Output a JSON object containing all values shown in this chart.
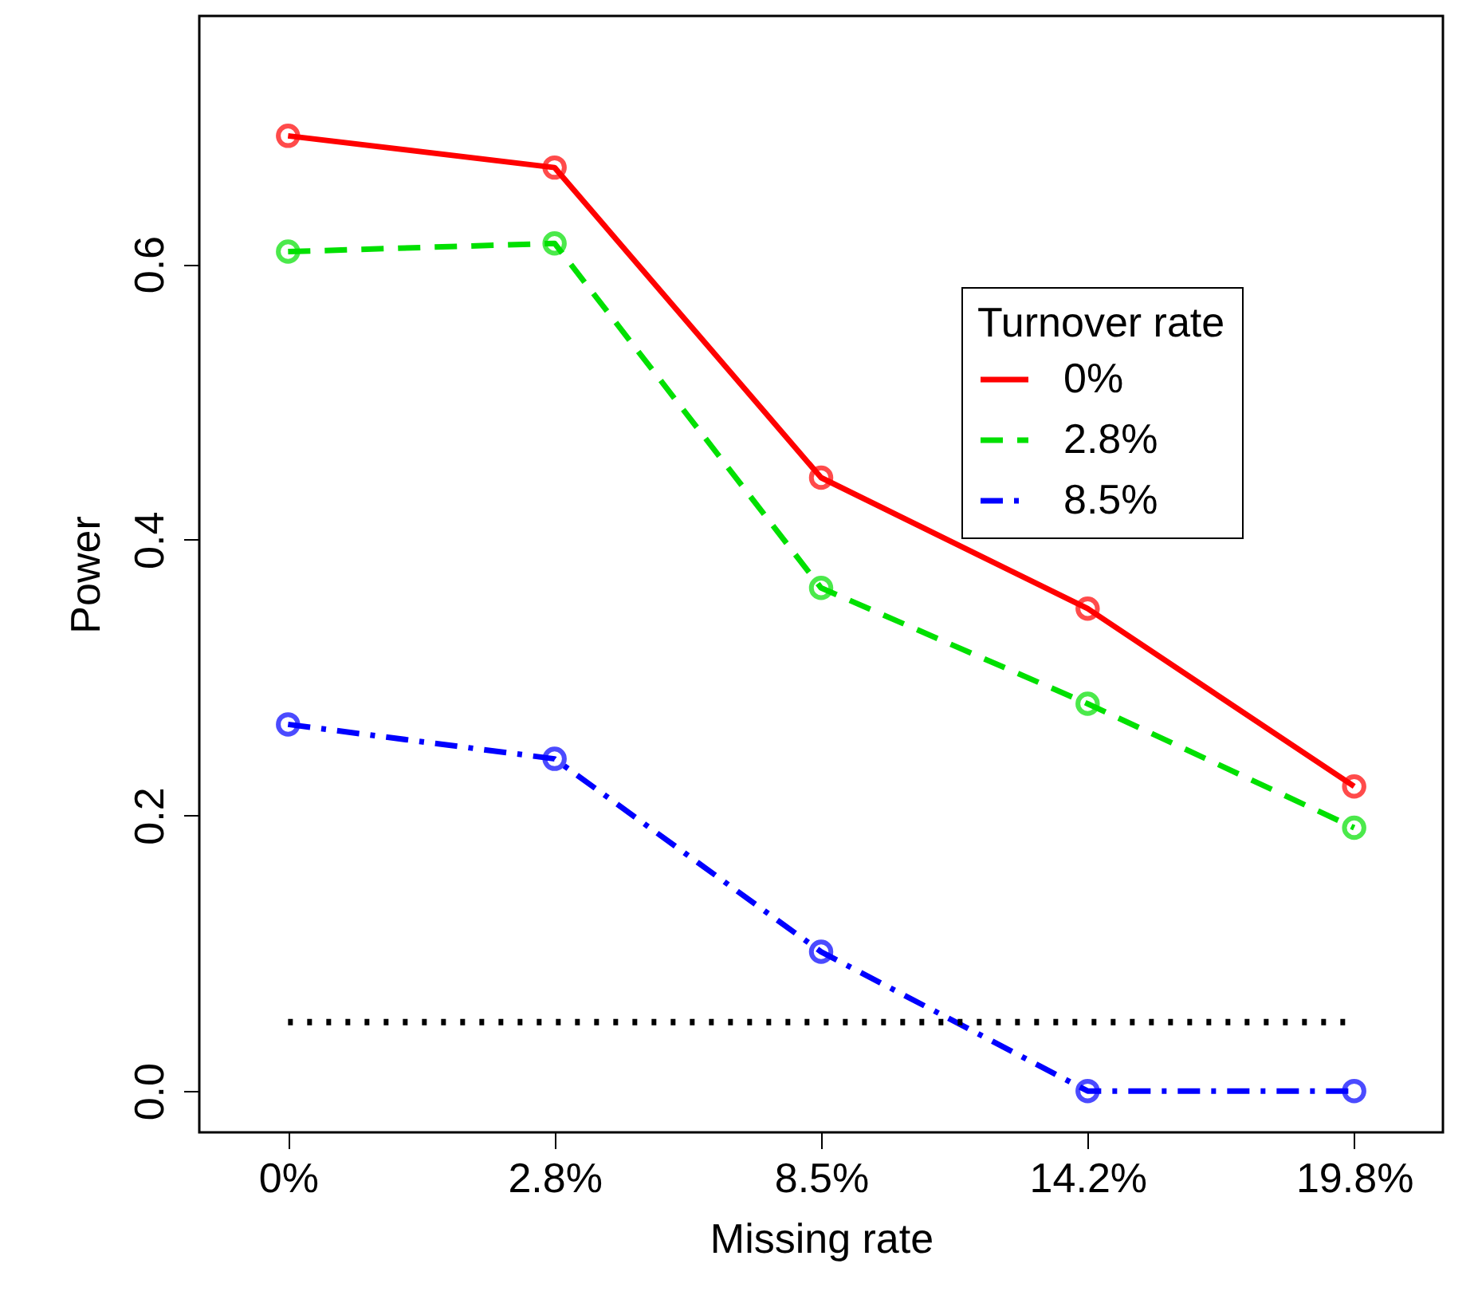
{
  "chart_data": {
    "type": "line",
    "xlabel": "Missing rate",
    "ylabel": "Power",
    "legend_title": "Turnover rate",
    "categories": [
      "0%",
      "2.8%",
      "8.5%",
      "14.2%",
      "19.8%"
    ],
    "series": [
      {
        "name": "0%",
        "color": "#ff0000",
        "line_style": "solid",
        "values": [
          0.693,
          0.67,
          0.445,
          0.35,
          0.221
        ]
      },
      {
        "name": "2.8%",
        "color": "#00e000",
        "line_style": "dashed",
        "values": [
          0.609,
          0.615,
          0.365,
          0.281,
          0.191
        ]
      },
      {
        "name": "8.5%",
        "color": "#0000ff",
        "line_style": "dashdot",
        "values": [
          0.266,
          0.241,
          0.101,
          0.0,
          0.0
        ]
      }
    ],
    "ylim": [
      -0.03,
      0.78
    ],
    "yticks": [
      {
        "value": 0,
        "label": "0.0"
      },
      {
        "value": 0.2,
        "label": "0.2"
      },
      {
        "value": 0.4,
        "label": "0.4"
      },
      {
        "value": 0.6,
        "label": "0.6"
      }
    ],
    "marker": "circle",
    "grid": false,
    "legend": "top right",
    "ref_lines": [
      {
        "axis": "y",
        "value": 0.05,
        "color": "#000000",
        "line_style": "dotted"
      }
    ]
  }
}
